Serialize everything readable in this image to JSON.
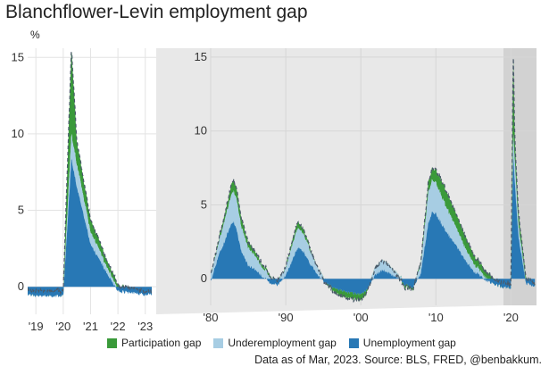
{
  "title": "Blanchflower-Levin employment gap",
  "source": "Data as of Mar, 2023. Source: BLS, FRED, @benbakkum.",
  "colors": {
    "participation": "#3a9a3a",
    "underemployment": "#a7cde3",
    "unemployment": "#2878b5",
    "frame": "#e8e8e8",
    "highlight": "#d2d2d2",
    "grid": "#e3e3e3",
    "dashed_line": "#4a5a6a"
  },
  "chart_data": [
    {
      "type": "area",
      "panel": "zoom 2019-2023",
      "ylabel": "%",
      "x_range": [
        2018.7,
        2023.4
      ],
      "ylim": [
        -1.8,
        15.6
      ],
      "yticks": [
        0,
        5,
        10,
        15
      ],
      "xticks": [
        2019,
        2020,
        2021,
        2022,
        2023
      ],
      "xtick_labels": [
        "'19",
        "'20",
        "'21",
        "'22",
        "'23"
      ],
      "grid": true
    },
    {
      "type": "area",
      "panel": "full 1980-2023",
      "x_range": [
        1980,
        2023.4
      ],
      "ylim": [
        -1.8,
        15.6
      ],
      "yticks": [
        0,
        5,
        10,
        15
      ],
      "xticks": [
        1980,
        1990,
        2000,
        2010,
        2020
      ],
      "xtick_labels": [
        "'80",
        "'90",
        "'00",
        "'10",
        "'20"
      ],
      "highlight_range": [
        2019,
        2023.4
      ],
      "grid": true,
      "stacked": true,
      "x": [
        1980,
        1981,
        1982,
        1982.5,
        1983,
        1983.5,
        1984,
        1985,
        1986,
        1987,
        1988,
        1989,
        1990,
        1991,
        1991.5,
        1992,
        1992.5,
        1993,
        1994,
        1995,
        1996,
        1997,
        1998,
        1999,
        2000,
        2001,
        2002,
        2003,
        2004,
        2005,
        2006,
        2007,
        2008,
        2009,
        2009.5,
        2010,
        2011,
        2012,
        2013,
        2014,
        2015,
        2016,
        2017,
        2018,
        2019,
        2020,
        2020.3,
        2020.5,
        2021,
        2021.5,
        2022,
        2022.5,
        2023,
        2023.3
      ],
      "series": [
        {
          "name": "Unemployment gap",
          "values": [
            -0.2,
            1.5,
            2.7,
            3.5,
            3.9,
            3.2,
            2.0,
            0.9,
            0.6,
            0.1,
            -0.3,
            -0.4,
            0.2,
            1.4,
            2.0,
            2.1,
            1.7,
            1.2,
            0.5,
            -0.2,
            -0.5,
            -0.7,
            -0.9,
            -1.0,
            -1.1,
            -0.6,
            0.3,
            0.6,
            0.3,
            0.0,
            -0.4,
            -0.6,
            0.4,
            3.8,
            4.5,
            4.4,
            3.5,
            2.7,
            2.0,
            1.2,
            0.5,
            0.2,
            -0.2,
            -0.4,
            -0.6,
            -0.6,
            8.4,
            6.5,
            2.8,
            1.2,
            -0.3,
            -0.4,
            -0.5,
            -0.5
          ]
        },
        {
          "name": "Underemployment gap",
          "values": [
            0.5,
            0.8,
            1.5,
            1.8,
            2.1,
            2.0,
            1.7,
            1.2,
            0.9,
            0.6,
            0.4,
            0.3,
            0.5,
            1.1,
            1.3,
            1.3,
            1.2,
            1.0,
            0.6,
            0.3,
            0.1,
            0.0,
            -0.1,
            -0.1,
            -0.1,
            0.2,
            0.6,
            0.7,
            0.5,
            0.3,
            0.1,
            0.1,
            0.6,
            2.1,
            2.2,
            2.1,
            1.8,
            1.5,
            1.1,
            0.8,
            0.5,
            0.3,
            0.1,
            0.0,
            0.0,
            0.0,
            1.6,
            1.5,
            0.8,
            0.5,
            0.1,
            0.1,
            0.1,
            0.1
          ]
        },
        {
          "name": "Participation gap",
          "values": [
            0.0,
            0.2,
            0.4,
            0.6,
            0.8,
            0.7,
            0.6,
            0.4,
            0.3,
            0.2,
            0.1,
            0.0,
            0.1,
            0.3,
            0.4,
            0.4,
            0.3,
            0.2,
            0.0,
            -0.2,
            -0.3,
            -0.4,
            -0.4,
            -0.4,
            -0.4,
            -0.3,
            -0.1,
            0.0,
            -0.1,
            -0.2,
            -0.3,
            -0.2,
            0.2,
            0.7,
            0.8,
            0.9,
            1.1,
            1.0,
            0.9,
            0.8,
            0.6,
            0.5,
            0.4,
            0.3,
            0.3,
            0.3,
            5.6,
            1.5,
            0.8,
            0.5,
            0.3,
            0.2,
            0.1,
            0.1
          ]
        }
      ]
    }
  ]
}
